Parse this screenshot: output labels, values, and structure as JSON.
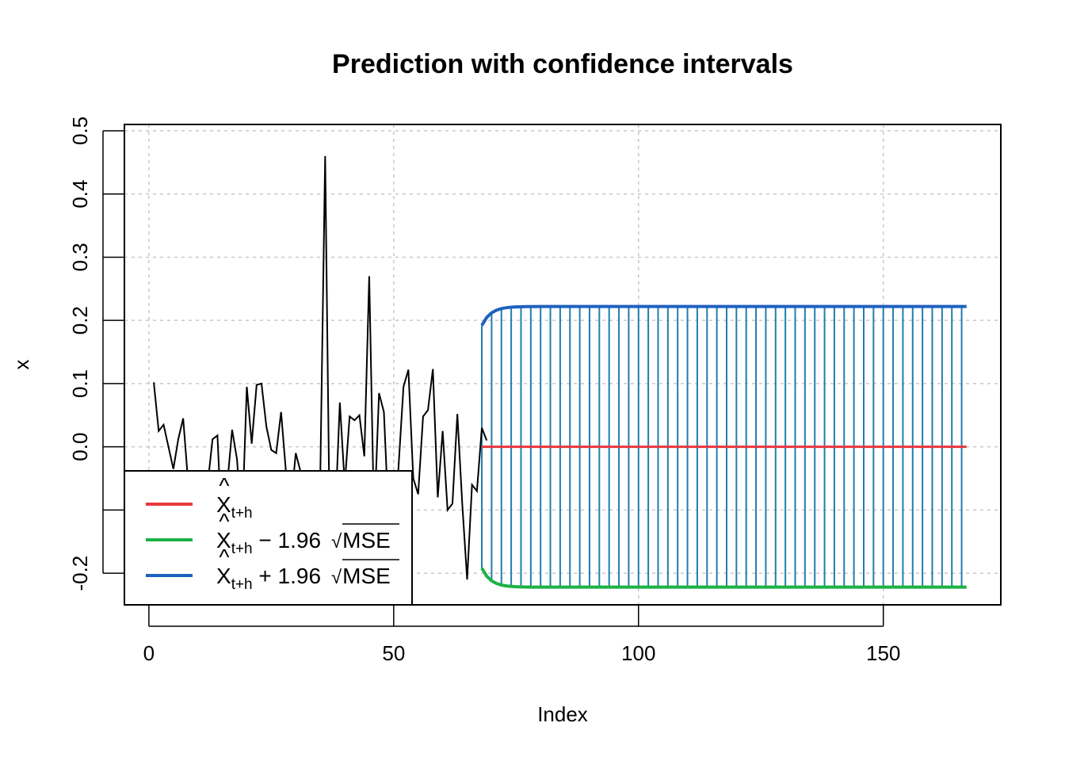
{
  "chart_data": {
    "type": "line",
    "title": "Prediction with confidence intervals",
    "xlabel": "Index",
    "ylabel": "x",
    "xlim": [
      -5,
      174
    ],
    "ylim": [
      -0.25,
      0.51
    ],
    "x_ticks": [
      0,
      50,
      100,
      150
    ],
    "x_tick_labels": [
      "0",
      "50",
      "100",
      "150"
    ],
    "y_ticks": [
      -0.2,
      -0.1,
      0.0,
      0.1,
      0.2,
      0.3,
      0.4,
      0.5
    ],
    "y_tick_labels": [
      "-0.2",
      "",
      "0.0",
      "0.1",
      "0.2",
      "0.3",
      "0.4",
      "0.5"
    ],
    "grid": true,
    "legend_position": "bottom-left",
    "colors": {
      "observed": "#000000",
      "prediction": "#e8383d",
      "lower": "#1db145",
      "upper": "#1e62c0",
      "interval_segments": "#1f7eae",
      "grid": "#c8c8c8"
    },
    "observed": {
      "x_start": 1,
      "values": [
        0.102,
        0.025,
        0.035,
        0.0,
        -0.035,
        0.012,
        0.045,
        -0.055,
        -0.085,
        -0.11,
        -0.09,
        -0.06,
        0.012,
        0.018,
        -0.15,
        -0.06,
        0.027,
        -0.02,
        -0.13,
        0.095,
        0.005,
        0.098,
        0.1,
        0.032,
        -0.005,
        -0.01,
        0.055,
        -0.04,
        -0.09,
        -0.01,
        -0.04,
        -0.1,
        -0.14,
        -0.17,
        -0.05,
        0.46,
        -0.18,
        -0.12,
        0.07,
        -0.06,
        0.048,
        0.042,
        0.05,
        -0.015,
        0.27,
        -0.12,
        0.085,
        0.055,
        -0.12,
        -0.16,
        -0.03,
        0.095,
        0.122,
        -0.05,
        -0.075,
        0.048,
        0.058,
        0.123,
        -0.08,
        0.025,
        -0.1,
        -0.09,
        0.052,
        -0.09,
        -0.21,
        -0.06,
        -0.07,
        0.03,
        0.01
      ]
    },
    "forecast": {
      "x": [
        68,
        167
      ],
      "prediction": 0.0,
      "upper": {
        "start": 0.192,
        "asymptote": 0.222,
        "decay": 0.55
      },
      "lower": {
        "start": -0.192,
        "asymptote": -0.222,
        "decay": 0.55
      }
    },
    "legend": [
      {
        "key": "prediction",
        "label_main": "X",
        "label_hat": "^",
        "label_sub": "t+h",
        "label_rest": ""
      },
      {
        "key": "lower",
        "label_main": "X",
        "label_hat": "^",
        "label_sub": "t+h",
        "label_rest": " − 1.96",
        "label_root": "MSE"
      },
      {
        "key": "upper",
        "label_main": "X",
        "label_hat": "^",
        "label_sub": "t+h",
        "label_rest": " + 1.96",
        "label_root": "MSE"
      }
    ]
  }
}
